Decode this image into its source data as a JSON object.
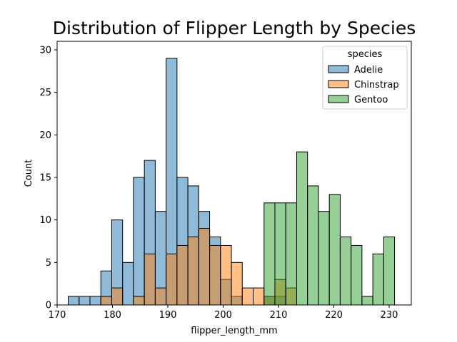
{
  "chart_data": {
    "type": "histogram",
    "title": "Distribution of Flipper Length by Species",
    "xlabel": "flipper_length_mm",
    "ylabel": "Count",
    "xlim": [
      170,
      234
    ],
    "ylim": [
      0,
      31
    ],
    "xticks": [
      170,
      180,
      190,
      200,
      210,
      220,
      230
    ],
    "yticks": [
      0,
      5,
      10,
      15,
      20,
      25,
      30
    ],
    "bins": {
      "start": 172,
      "width": 1.966
    },
    "legend": {
      "title": "species",
      "placement": "top-right"
    },
    "series": [
      {
        "name": "Adelie",
        "color": "#1f77b4",
        "counts": [
          1,
          1,
          1,
          4,
          10,
          5,
          15,
          17,
          11,
          29,
          15,
          14,
          11,
          8,
          3,
          1,
          0,
          0,
          1,
          1,
          0,
          0,
          0,
          0,
          0,
          0,
          0,
          0,
          0,
          0
        ]
      },
      {
        "name": "Chinstrap",
        "color": "#ff7f0e",
        "counts": [
          0,
          0,
          0,
          1,
          2,
          0,
          1,
          6,
          2,
          6,
          7,
          8,
          9,
          7,
          7,
          5,
          2,
          2,
          1,
          3,
          2,
          0,
          0,
          0,
          0,
          0,
          0,
          0,
          0,
          0
        ]
      },
      {
        "name": "Gentoo",
        "color": "#2ca02c",
        "counts": [
          0,
          0,
          0,
          0,
          0,
          0,
          0,
          0,
          0,
          0,
          0,
          0,
          0,
          0,
          0,
          0,
          0,
          0,
          12,
          12,
          12,
          18,
          14,
          11,
          13,
          8,
          7,
          1,
          6,
          8
        ]
      }
    ]
  }
}
